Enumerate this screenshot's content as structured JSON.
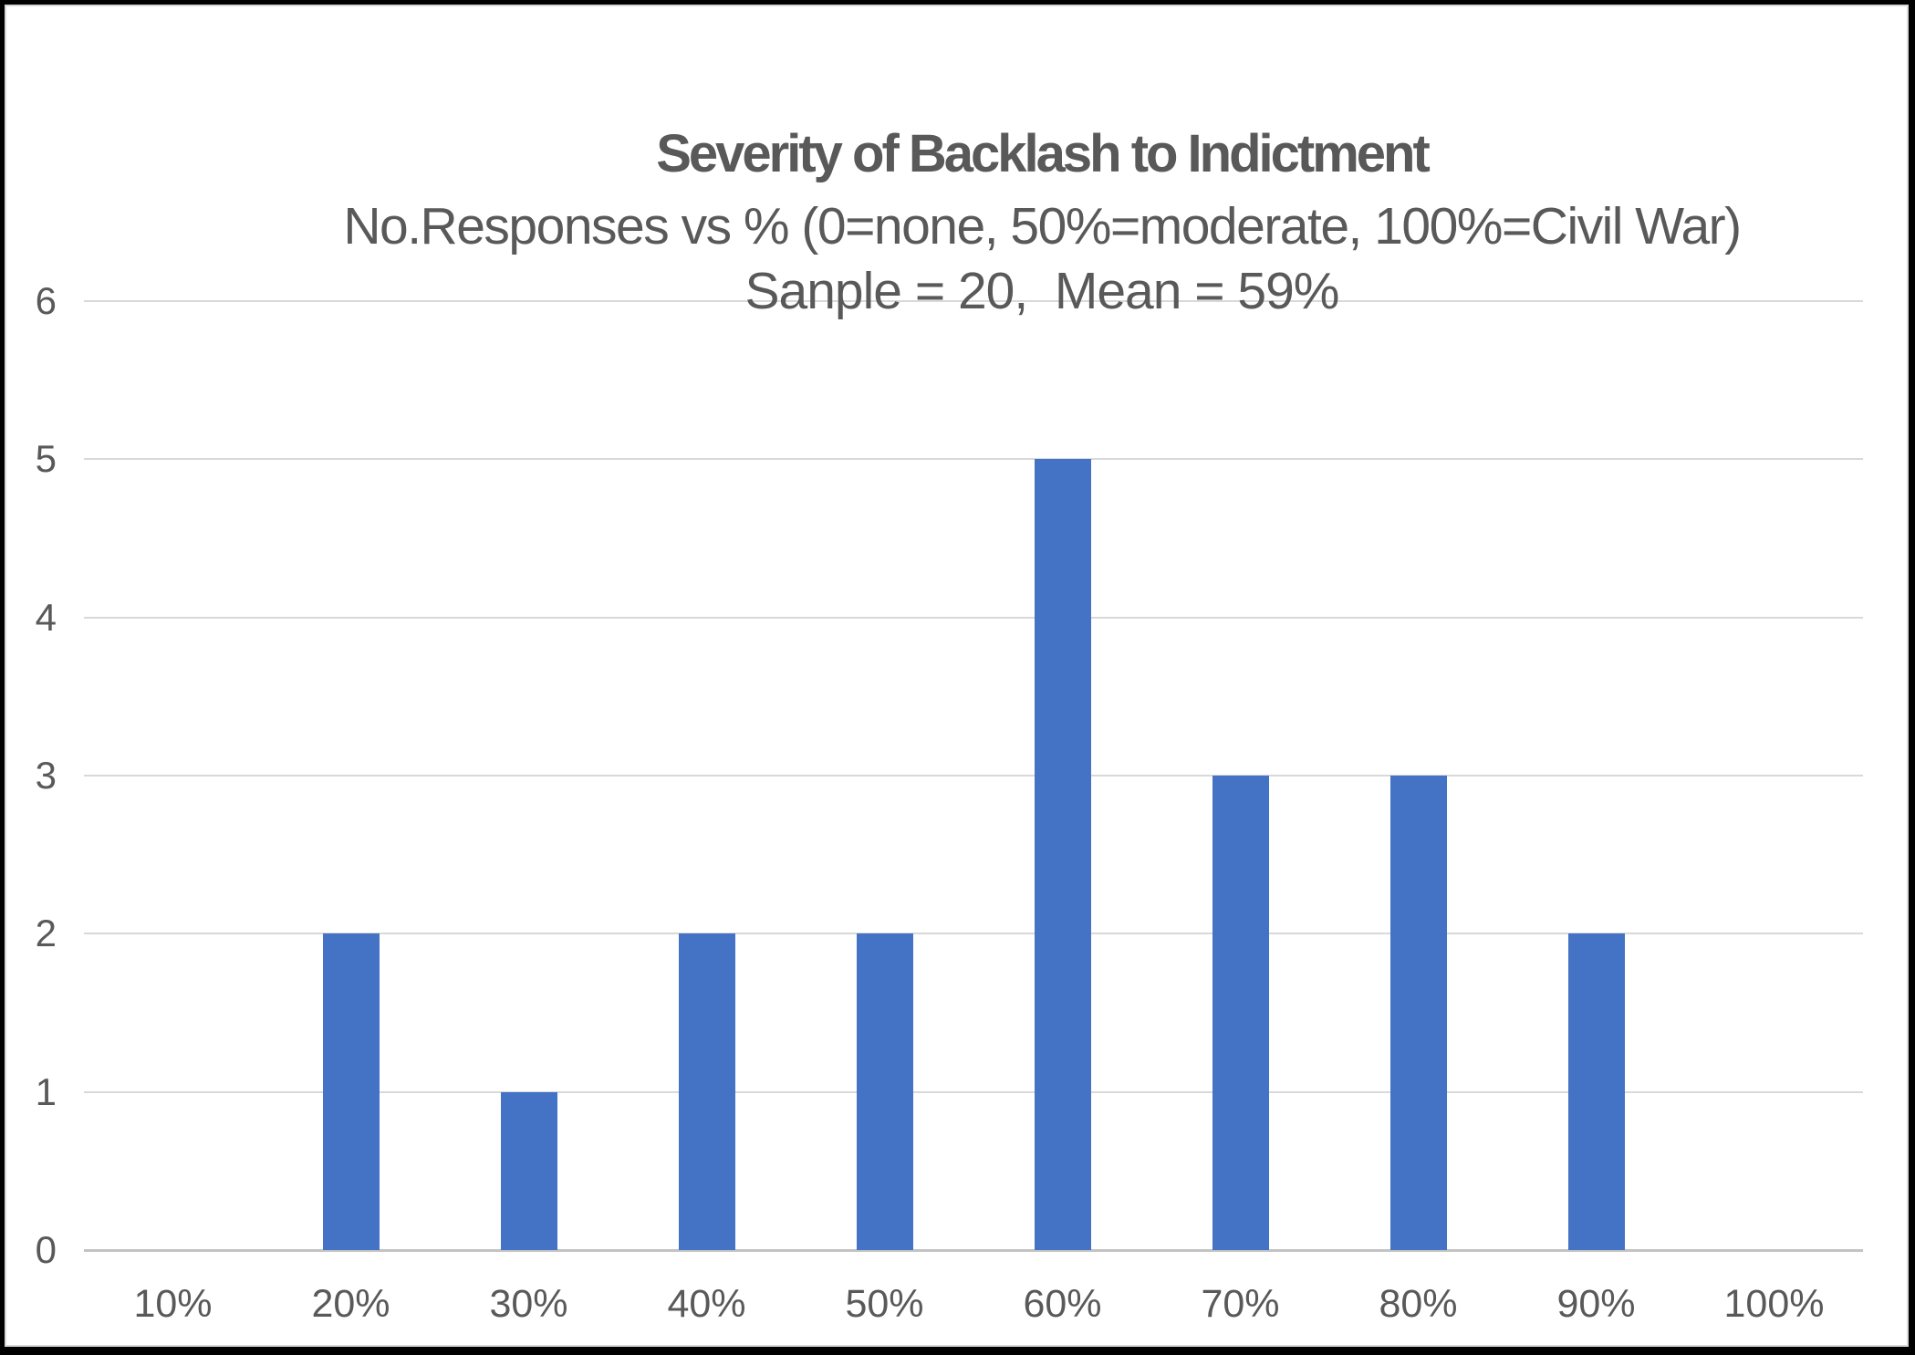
{
  "chart_data": {
    "type": "bar",
    "title": "Severity of Backlash to Indictment",
    "subtitle_line1": "No.Responses vs % (0=none, 50%=moderate, 100%=Civil War)",
    "subtitle_line2": "Sanple = 20,  Mean = 59%",
    "categories": [
      "10%",
      "20%",
      "30%",
      "40%",
      "50%",
      "60%",
      "70%",
      "80%",
      "90%",
      "100%"
    ],
    "values": [
      0,
      2,
      1,
      2,
      2,
      5,
      3,
      3,
      2,
      0
    ],
    "y_ticks": [
      "0",
      "1",
      "2",
      "3",
      "4",
      "5",
      "6"
    ],
    "ylim": [
      0,
      6
    ],
    "xlabel": "",
    "ylabel": "",
    "grid": "horizontal",
    "legend_position": "none",
    "sample_size": "20",
    "mean": "59%",
    "colors": {
      "bar": "#4472C4",
      "gridline": "#D9D9D9",
      "axis_line": "#C3C3C3",
      "text": "#595959",
      "background": "#FFFFFF",
      "frame": "#010101"
    }
  }
}
